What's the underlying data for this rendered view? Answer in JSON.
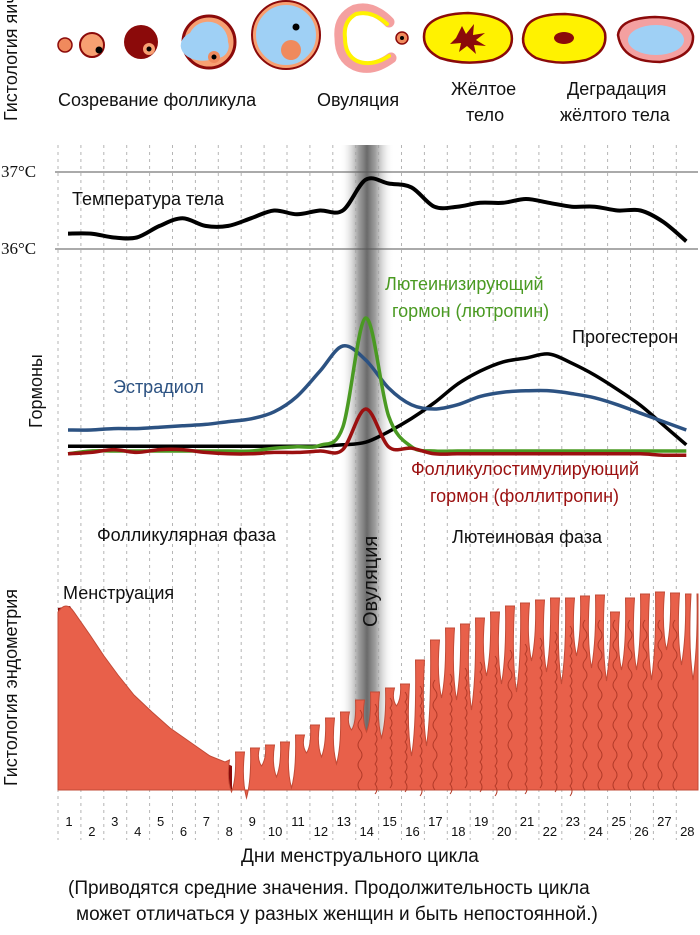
{
  "labels": {
    "ovary_histology": "Гистология яичника",
    "follicle_maturation": "Созревание фолликула",
    "ovulation_top": "Овуляция",
    "corpus_luteum_line1": "Жёлтое",
    "corpus_luteum_line2": "тело",
    "degradation_line1": "Деградация",
    "degradation_line2": "жёлтого тела",
    "temp_37": "37°C",
    "temp_36": "36°C",
    "body_temperature": "Температура тела",
    "hormones": "Гормоны",
    "lh_line1": "Лютеинизирующий",
    "lh_line2": "гормон (лютропин)",
    "progesterone": "Прогестерон",
    "estradiol": "Эстрадиол",
    "fsh_line1": "Фолликулостимулирующий",
    "fsh_line2": "гормон (фоллитропин)",
    "follicular_phase": "Фолликулярная фаза",
    "luteal_phase": "Лютеиновая фаза",
    "ovulation_vertical": "Овуляция",
    "menstruation": "Менструация",
    "endometrium_histology": "Гистология эндометрия",
    "x_axis_title": "Дни менструального цикла",
    "note_line1": "(Приводятся средние значения. Продолжительность цикла",
    "note_line2": "может отличаться у разных женщин и быть непостоянной.)"
  },
  "colors": {
    "estradiol": "#2c5282",
    "lh": "#4a9a22",
    "fsh": "#9b1010",
    "progesterone": "#000000",
    "temperature": "#000000",
    "endometrium": "#e8604a",
    "menstrual_blood": "#8b0a0a",
    "corpus_luteum": "#fff200",
    "follicle_fluid": "#9fd0f5"
  },
  "days": [
    "1",
    "2",
    "3",
    "4",
    "5",
    "6",
    "7",
    "8",
    "9",
    "10",
    "11",
    "12",
    "13",
    "14",
    "15",
    "16",
    "17",
    "18",
    "19",
    "20",
    "21",
    "22",
    "23",
    "24",
    "25",
    "26",
    "27",
    "28"
  ],
  "chart_data": {
    "type": "line",
    "x": [
      1,
      2,
      3,
      4,
      5,
      6,
      7,
      8,
      9,
      10,
      11,
      12,
      13,
      14,
      15,
      16,
      17,
      18,
      19,
      20,
      21,
      22,
      23,
      24,
      25,
      26,
      27,
      28
    ],
    "series": [
      {
        "name": "Температура тела",
        "unit": "°C",
        "values": [
          36.2,
          36.2,
          36.15,
          36.15,
          36.3,
          36.4,
          36.3,
          36.3,
          36.4,
          36.5,
          36.45,
          36.5,
          36.5,
          36.9,
          36.85,
          36.8,
          36.55,
          36.55,
          36.6,
          36.6,
          36.65,
          36.6,
          36.55,
          36.55,
          36.5,
          36.5,
          36.35,
          36.1
        ]
      },
      {
        "name": "Эстрадиол",
        "values": [
          20,
          20,
          21,
          21,
          22,
          23,
          24,
          26,
          28,
          33,
          44,
          62,
          80,
          70,
          50,
          38,
          35,
          38,
          44,
          47,
          48,
          48,
          46,
          43,
          38,
          32,
          26,
          20
        ]
      },
      {
        "name": "Лютеинизирующий гормон (лютропин)",
        "values": [
          3,
          5,
          5,
          5,
          5,
          5,
          5,
          5,
          5,
          7,
          8,
          9,
          22,
          100,
          30,
          8,
          5,
          5,
          5,
          5,
          5,
          5,
          5,
          5,
          5,
          5,
          5,
          5
        ]
      },
      {
        "name": "Фолликулостимулирующий гормон (фоллитропин)",
        "values": [
          3,
          4,
          6,
          4,
          6,
          6,
          4,
          3,
          3,
          4,
          4,
          5,
          6,
          35,
          8,
          7,
          3,
          3,
          3,
          3,
          3,
          3,
          3,
          3,
          3,
          3,
          2,
          2
        ]
      },
      {
        "name": "Прогестерон",
        "values": [
          9,
          9,
          9,
          9,
          9,
          9,
          9,
          9,
          9,
          9,
          9,
          9,
          10,
          12,
          20,
          30,
          42,
          56,
          66,
          73,
          76,
          79,
          72,
          63,
          52,
          40,
          25,
          10
        ]
      }
    ],
    "xlabel": "Дни менструального цикла",
    "ylabel": "Гормоны",
    "temperature_ylim": [
      36,
      37
    ]
  }
}
